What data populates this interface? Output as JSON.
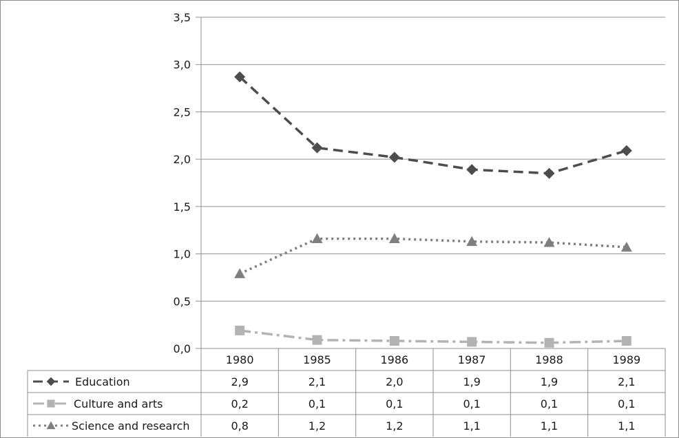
{
  "chart_data": {
    "type": "line",
    "categories": [
      "1980",
      "1985",
      "1986",
      "1987",
      "1988",
      "1989"
    ],
    "ylim": [
      0,
      3.5
    ],
    "ytick_labels": [
      "0,0",
      "0,5",
      "1,0",
      "1,5",
      "2,0",
      "2,5",
      "3,0",
      "3,5"
    ],
    "grid": "horizontal",
    "legend": "data table below chart",
    "series": [
      {
        "name": "Education",
        "values": [
          2.87,
          2.12,
          2.02,
          1.89,
          1.85,
          2.09
        ],
        "table_values": [
          "2,9",
          "2,1",
          "2,0",
          "1,9",
          "1,9",
          "2,1"
        ],
        "color": "#4d4d4d",
        "marker": "diamond",
        "dash": "dashed"
      },
      {
        "name": "Culture and arts",
        "values": [
          0.19,
          0.09,
          0.08,
          0.07,
          0.06,
          0.08
        ],
        "table_values": [
          "0,2",
          "0,1",
          "0,1",
          "0,1",
          "0,1",
          "0,1"
        ],
        "color": "#b3b3b3",
        "marker": "square",
        "dash": "dash-dot"
      },
      {
        "name": "Science and research",
        "values": [
          0.79,
          1.16,
          1.16,
          1.13,
          1.12,
          1.07
        ],
        "table_values": [
          "0,8",
          "1,2",
          "1,2",
          "1,1",
          "1,1",
          "1,1"
        ],
        "color": "#7f7f7f",
        "marker": "triangle",
        "dash": "dotted"
      }
    ]
  }
}
